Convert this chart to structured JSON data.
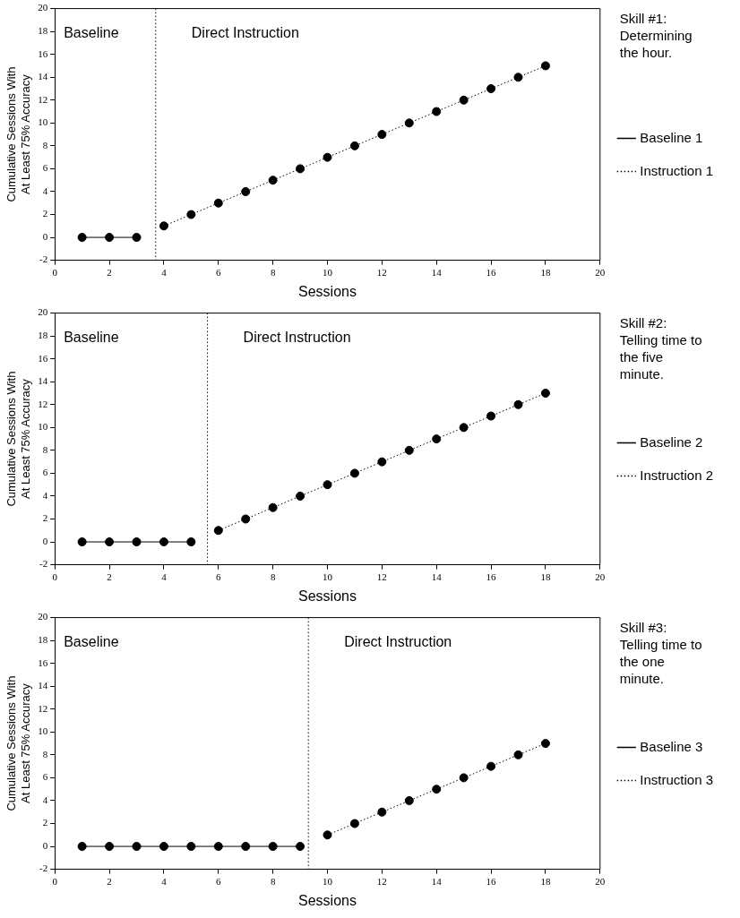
{
  "chart_data": [
    {
      "type": "line",
      "xlabel": "Sessions",
      "ylabel": "Cumulative Sessions With\nAt Least 75% Accuracy",
      "xlim": [
        0,
        20
      ],
      "ylim": [
        -2,
        20
      ],
      "xticks": [
        0,
        2,
        4,
        6,
        8,
        10,
        12,
        14,
        16,
        18,
        20
      ],
      "yticks": [
        -2,
        0,
        2,
        4,
        6,
        8,
        10,
        12,
        14,
        16,
        18,
        20
      ],
      "grid": false,
      "legend": "right",
      "marker": "circle",
      "series": [
        {
          "name": "Baseline 1",
          "color": "#000000",
          "line_style": "solid",
          "x": [
            1,
            2,
            3
          ],
          "values": [
            0,
            0,
            0
          ]
        },
        {
          "name": "Instruction 1",
          "color": "#000000",
          "line_style": "dotted",
          "x": [
            4,
            5,
            6,
            7,
            8,
            9,
            10,
            11,
            12,
            13,
            14,
            15,
            16,
            17,
            18
          ],
          "values": [
            1,
            2,
            3,
            4,
            5,
            6,
            7,
            8,
            9,
            10,
            11,
            12,
            13,
            14,
            15
          ]
        }
      ],
      "ref_lines": [
        {
          "axis": "x",
          "value": 3.7,
          "color": "#000000",
          "line_style": "dotted"
        }
      ],
      "annotations": [
        "Baseline",
        "Direct Instruction",
        "Skill #1:\nDetermining\nthe hour."
      ]
    },
    {
      "type": "line",
      "xlabel": "Sessions",
      "ylabel": "Cumulative Sessions With\nAt Least 75% Accuracy",
      "xlim": [
        0,
        20
      ],
      "ylim": [
        -2,
        20
      ],
      "xticks": [
        0,
        2,
        4,
        6,
        8,
        10,
        12,
        14,
        16,
        18,
        20
      ],
      "yticks": [
        -2,
        0,
        2,
        4,
        6,
        8,
        10,
        12,
        14,
        16,
        18,
        20
      ],
      "grid": false,
      "legend": "right",
      "marker": "circle",
      "series": [
        {
          "name": "Baseline 2",
          "color": "#000000",
          "line_style": "solid",
          "x": [
            1,
            2,
            3,
            4,
            5
          ],
          "values": [
            0,
            0,
            0,
            0,
            0
          ]
        },
        {
          "name": "Instruction 2",
          "color": "#000000",
          "line_style": "dotted",
          "x": [
            6,
            7,
            8,
            9,
            10,
            11,
            12,
            13,
            14,
            15,
            16,
            17,
            18
          ],
          "values": [
            1,
            2,
            3,
            4,
            5,
            6,
            7,
            8,
            9,
            10,
            11,
            12,
            13
          ]
        }
      ],
      "ref_lines": [
        {
          "axis": "x",
          "value": 5.6,
          "color": "#000000",
          "line_style": "dotted"
        }
      ],
      "annotations": [
        "Baseline",
        "Direct Instruction",
        "Skill #2:\nTelling time to\nthe five\nminute."
      ]
    },
    {
      "type": "line",
      "xlabel": "Sessions",
      "ylabel": "Cumulative Sessions With\nAt Least 75% Accuracy",
      "xlim": [
        0,
        20
      ],
      "ylim": [
        -2,
        20
      ],
      "xticks": [
        0,
        2,
        4,
        6,
        8,
        10,
        12,
        14,
        16,
        18,
        20
      ],
      "yticks": [
        -2,
        0,
        2,
        4,
        6,
        8,
        10,
        12,
        14,
        16,
        18,
        20
      ],
      "grid": false,
      "legend": "right",
      "marker": "circle",
      "series": [
        {
          "name": "Baseline 3",
          "color": "#000000",
          "line_style": "solid",
          "x": [
            1,
            2,
            3,
            4,
            5,
            6,
            7,
            8,
            9
          ],
          "values": [
            0,
            0,
            0,
            0,
            0,
            0,
            0,
            0,
            0
          ]
        },
        {
          "name": "Instruction 3",
          "color": "#000000",
          "line_style": "dotted",
          "x": [
            10,
            11,
            12,
            13,
            14,
            15,
            16,
            17,
            18
          ],
          "values": [
            1,
            2,
            3,
            4,
            5,
            6,
            7,
            8,
            9
          ]
        }
      ],
      "ref_lines": [
        {
          "axis": "x",
          "value": 9.3,
          "color": "#000000",
          "line_style": "dotted"
        }
      ],
      "annotations": [
        "Baseline",
        "Direct Instruction",
        "Skill #3:\nTelling time to\nthe one\nminute."
      ]
    }
  ]
}
